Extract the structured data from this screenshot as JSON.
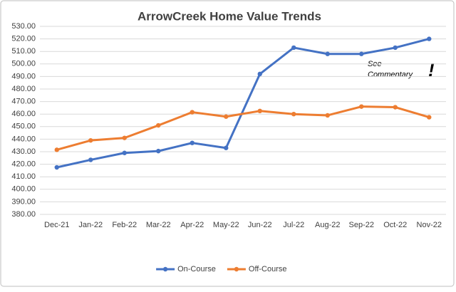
{
  "chart_data": {
    "type": "line",
    "title": "ArrowCreek Home Value Trends",
    "categories": [
      "Dec-21",
      "Jan-22",
      "Feb-22",
      "Mar-22",
      "Apr-22",
      "May-22",
      "Jun-22",
      "Jul-22",
      "Aug-22",
      "Sep-22",
      "Oct-22",
      "Nov-22"
    ],
    "series": [
      {
        "name": "On-Course",
        "color": "#4472c4",
        "values": [
          417.5,
          423.5,
          429,
          430.5,
          437,
          433,
          492,
          513,
          508,
          508,
          513,
          520
        ]
      },
      {
        "name": "Off-Course",
        "color": "#ed7d31",
        "values": [
          431.5,
          439,
          441,
          451,
          461.5,
          458,
          462.5,
          460,
          459,
          466,
          465.5,
          457.5
        ]
      }
    ],
    "ylim": [
      380,
      530
    ],
    "yticks": [
      {
        "value": 380,
        "label": "380.00"
      },
      {
        "value": 390,
        "label": "390.00"
      },
      {
        "value": 400,
        "label": "400.00"
      },
      {
        "value": 410,
        "label": "410.00"
      },
      {
        "value": 420,
        "label": "420.00"
      },
      {
        "value": 430,
        "label": "430.00"
      },
      {
        "value": 440,
        "label": "440.00"
      },
      {
        "value": 450,
        "label": "450.00"
      },
      {
        "value": 460,
        "label": "460.00"
      },
      {
        "value": 470,
        "label": "470.00"
      },
      {
        "value": 480,
        "label": "480.00"
      },
      {
        "value": 490,
        "label": "490.00"
      },
      {
        "value": 500,
        "label": "500.00"
      },
      {
        "value": 510,
        "label": "510.00"
      },
      {
        "value": 520,
        "label": "520.00"
      },
      {
        "value": 530,
        "label": "530.00"
      }
    ],
    "grid": true,
    "legend": "bottom",
    "annotation": {
      "lines": [
        "See",
        "Commentary"
      ],
      "mark": "!"
    }
  }
}
